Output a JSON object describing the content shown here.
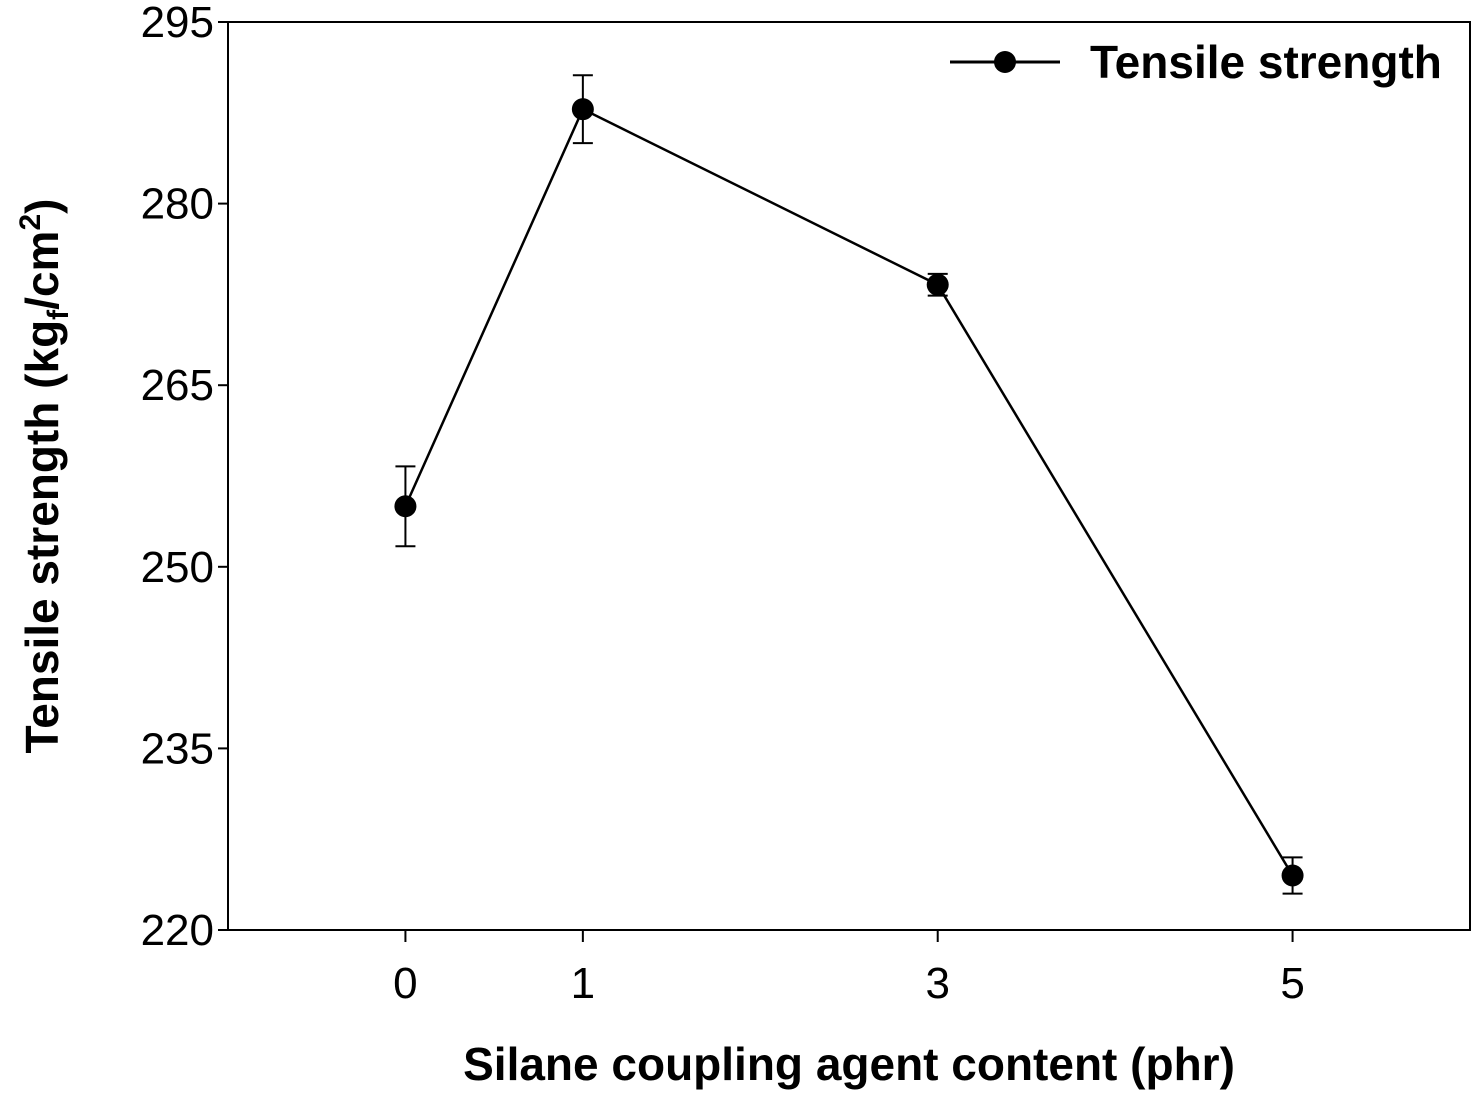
{
  "chart_data": {
    "type": "line",
    "x_label": "Silane coupling agent content (phr)",
    "y_label_parts": [
      "Tensile strength (kg",
      "f",
      "/cm",
      "2",
      ")"
    ],
    "x": [
      0,
      1,
      3,
      5
    ],
    "series": [
      {
        "name": "Tensile strength",
        "color": "#000000",
        "values": [
          255.0,
          287.8,
          273.3,
          224.5
        ],
        "errors": [
          3.3,
          2.8,
          0.9,
          1.5
        ]
      }
    ],
    "xlim": [
      -1,
      6
    ],
    "xticks": [
      0,
      1,
      3,
      5
    ],
    "ylim": [
      220,
      295
    ],
    "yticks": [
      220,
      235,
      250,
      265,
      280,
      295
    ],
    "grid": false,
    "legend": "upper right"
  }
}
